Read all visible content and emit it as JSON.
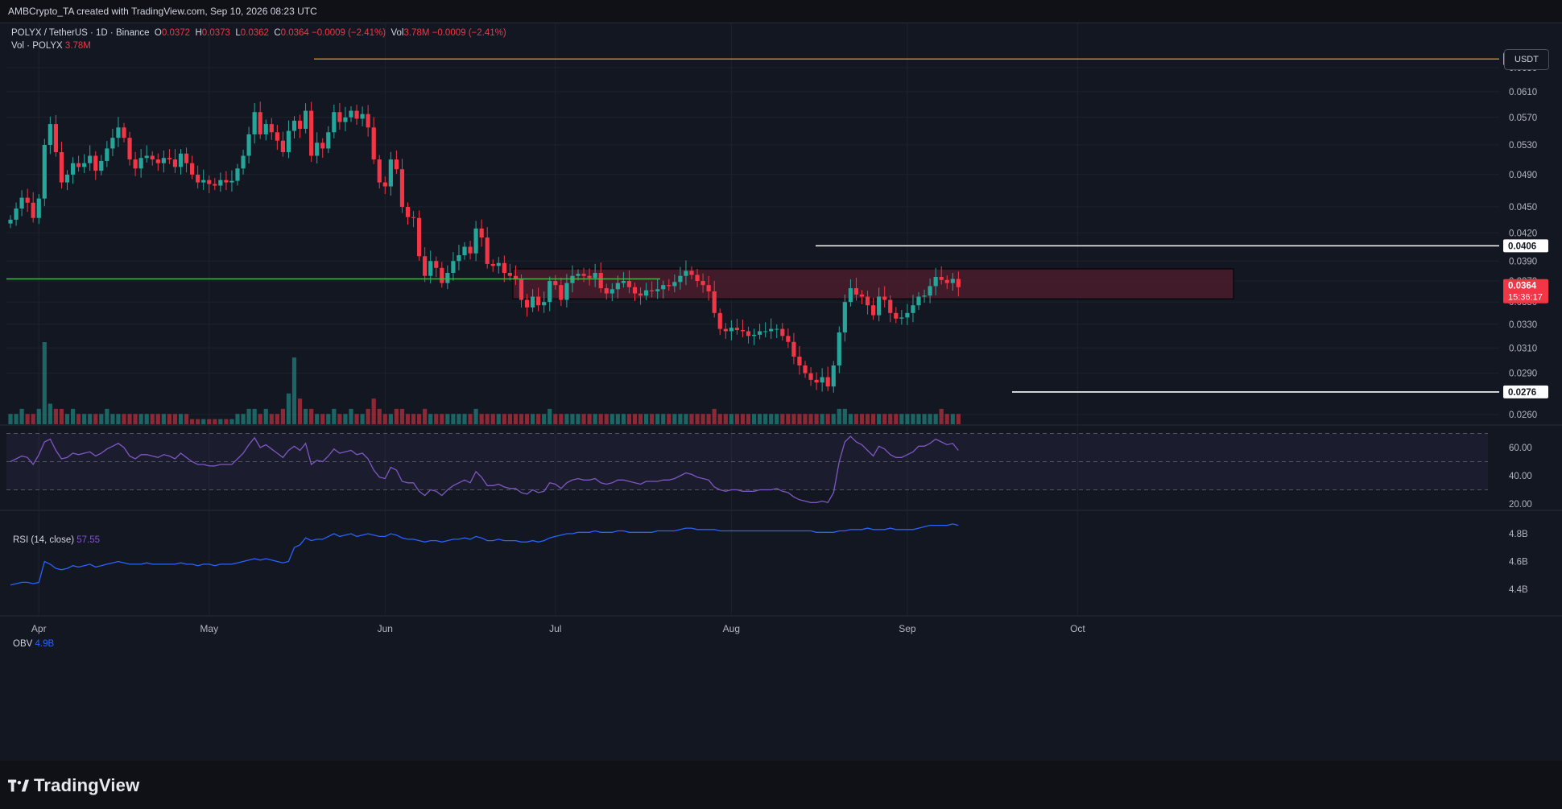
{
  "header": {
    "attribution": "AMBCrypto_TA created with TradingView.com, Sep 10, 2026 08:23 UTC"
  },
  "legend": {
    "symbol": "POLYX / TetherUS · 1D · Binance",
    "open_label": "O",
    "open": "0.0372",
    "high_label": "H",
    "high": "0.0373",
    "low_label": "L",
    "low": "0.0362",
    "close_label": "C",
    "close": "0.0364 −0.0009 (−2.41%)",
    "vol_label": "Vol",
    "vol": "3.78M −0.0009 (−2.41%)",
    "vol_line_label": "Vol · POLYX",
    "vol_line_value": "3.78M"
  },
  "currency_button": "USDT",
  "rsi_legend": {
    "label": "RSI (14, close)",
    "value": "57.55"
  },
  "obv_legend": {
    "label": "OBV",
    "value": "4.9B"
  },
  "footer": {
    "brand": "TradingView"
  },
  "colors": {
    "up": "#26a69a",
    "down": "#f23645",
    "rsi": "#7e57c2",
    "obv": "#2962ff",
    "zone": "#4a1c2a",
    "green_line": "#4caf50",
    "orange_line": "#ff9800"
  },
  "chart_data": {
    "type": "candlestick",
    "price_axis": {
      "ticks": [
        "0.0650",
        "0.0610",
        "0.0570",
        "0.0530",
        "0.0490",
        "0.0450",
        "0.0420",
        "0.0390",
        "0.0370",
        "0.0350",
        "0.0330",
        "0.0310",
        "0.0290",
        "0.0260"
      ],
      "scale": "log"
    },
    "x_axis": {
      "ticks": [
        "Apr",
        "May",
        "Jun",
        "Jul",
        "Aug",
        "Sep",
        "Oct"
      ]
    },
    "price_labels": [
      {
        "value": "0.0665",
        "kind": "orange"
      },
      {
        "value": "0.0406",
        "kind": "white"
      },
      {
        "value": "0.0364",
        "kind": "current",
        "countdown": "15:36:17"
      },
      {
        "value": "0.0276",
        "kind": "white"
      }
    ],
    "levels": {
      "resistance_high": 0.0665,
      "recent_high": 0.0406,
      "support_low": 0.0276,
      "green_line": 0.0372
    },
    "zone": {
      "top": 0.0382,
      "bottom": 0.0353,
      "from": "Jun 9",
      "to": "Sep 14"
    },
    "rsi_axis": {
      "ticks": [
        "60.00",
        "40.00",
        "20.00"
      ],
      "upper": 70,
      "middle": 50,
      "lower": 30
    },
    "obv_axis": {
      "ticks": [
        "4.8B",
        "4.6B",
        "4.4B"
      ]
    },
    "start_date": "Mar 27",
    "closes": [
      0.0435,
      0.0448,
      0.0461,
      0.0455,
      0.0437,
      0.046,
      0.053,
      0.056,
      0.052,
      0.048,
      0.049,
      0.0505,
      0.05,
      0.0505,
      0.0515,
      0.0495,
      0.0508,
      0.0525,
      0.054,
      0.0555,
      0.054,
      0.051,
      0.0498,
      0.0512,
      0.0515,
      0.051,
      0.0505,
      0.0512,
      0.051,
      0.05,
      0.0518,
      0.0505,
      0.049,
      0.048,
      0.0483,
      0.0478,
      0.0476,
      0.0483,
      0.048,
      0.0482,
      0.0498,
      0.0515,
      0.0545,
      0.0578,
      0.0545,
      0.056,
      0.0548,
      0.0536,
      0.052,
      0.055,
      0.0565,
      0.0553,
      0.058,
      0.0515,
      0.0533,
      0.0525,
      0.0548,
      0.0578,
      0.0563,
      0.057,
      0.058,
      0.0568,
      0.0575,
      0.0555,
      0.051,
      0.048,
      0.0475,
      0.051,
      0.0497,
      0.045,
      0.0438,
      0.0437,
      0.0395,
      0.0375,
      0.039,
      0.0383,
      0.0368,
      0.0378,
      0.039,
      0.0396,
      0.0405,
      0.0398,
      0.0425,
      0.0415,
      0.0387,
      0.0385,
      0.0388,
      0.0378,
      0.0375,
      0.0372,
      0.0352,
      0.0345,
      0.0355,
      0.0347,
      0.035,
      0.037,
      0.0366,
      0.0352,
      0.0368,
      0.0375,
      0.0377,
      0.0375,
      0.0373,
      0.0378,
      0.0363,
      0.0358,
      0.0362,
      0.0368,
      0.037,
      0.0364,
      0.0358,
      0.0356,
      0.0361,
      0.036,
      0.0362,
      0.0366,
      0.0365,
      0.0369,
      0.0375,
      0.038,
      0.0376,
      0.037,
      0.0366,
      0.036,
      0.034,
      0.0326,
      0.0324,
      0.0327,
      0.0325,
      0.0324,
      0.032,
      0.0321,
      0.0324,
      0.0324,
      0.0326,
      0.0326,
      0.032,
      0.0315,
      0.0303,
      0.0296,
      0.029,
      0.0285,
      0.0283,
      0.0287,
      0.028,
      0.0296,
      0.0323,
      0.035,
      0.0363,
      0.0357,
      0.0355,
      0.0347,
      0.0338,
      0.0355,
      0.0352,
      0.034,
      0.0335,
      0.0336,
      0.034,
      0.0347,
      0.0355,
      0.0356,
      0.0365,
      0.0374,
      0.0371,
      0.0368,
      0.0372,
      0.0364
    ],
    "rsi": [
      50,
      52,
      54,
      53,
      48,
      55,
      64,
      66,
      58,
      52,
      53,
      56,
      55,
      56,
      57,
      54,
      56,
      59,
      61,
      63,
      60,
      54,
      52,
      55,
      55,
      54,
      53,
      55,
      54,
      52,
      56,
      53,
      50,
      48,
      48,
      47,
      47,
      48,
      48,
      48,
      52,
      56,
      62,
      67,
      60,
      62,
      59,
      56,
      53,
      58,
      61,
      58,
      63,
      48,
      51,
      50,
      54,
      59,
      56,
      57,
      58,
      55,
      56,
      52,
      44,
      39,
      38,
      46,
      44,
      36,
      35,
      35,
      29,
      26,
      30,
      29,
      26,
      30,
      33,
      35,
      37,
      35,
      43,
      39,
      33,
      33,
      34,
      32,
      31,
      31,
      28,
      27,
      30,
      28,
      29,
      35,
      34,
      31,
      35,
      37,
      38,
      37,
      37,
      38,
      35,
      34,
      35,
      37,
      37,
      36,
      35,
      34,
      36,
      36,
      36,
      37,
      37,
      38,
      40,
      42,
      41,
      39,
      38,
      37,
      32,
      30,
      29,
      30,
      30,
      29,
      29,
      29,
      30,
      30,
      30,
      31,
      29,
      28,
      25,
      23,
      22,
      21,
      21,
      22,
      21,
      28,
      50,
      64,
      68,
      64,
      62,
      58,
      54,
      61,
      59,
      55,
      53,
      53,
      55,
      57,
      61,
      61,
      63,
      66,
      64,
      62,
      63,
      58
    ],
    "obv": [
      4.43,
      4.44,
      4.45,
      4.45,
      4.44,
      4.45,
      4.6,
      4.58,
      4.55,
      4.54,
      4.55,
      4.57,
      4.56,
      4.57,
      4.58,
      4.56,
      4.57,
      4.58,
      4.59,
      4.6,
      4.59,
      4.58,
      4.58,
      4.58,
      4.59,
      4.58,
      4.58,
      4.58,
      4.58,
      4.58,
      4.59,
      4.58,
      4.58,
      4.57,
      4.58,
      4.58,
      4.57,
      4.58,
      4.58,
      4.58,
      4.59,
      4.6,
      4.61,
      4.62,
      4.61,
      4.62,
      4.61,
      4.6,
      4.59,
      4.6,
      4.7,
      4.72,
      4.77,
      4.75,
      4.76,
      4.76,
      4.78,
      4.8,
      4.78,
      4.79,
      4.8,
      4.78,
      4.79,
      4.8,
      4.79,
      4.78,
      4.78,
      4.8,
      4.79,
      4.77,
      4.76,
      4.76,
      4.75,
      4.74,
      4.75,
      4.75,
      4.74,
      4.75,
      4.76,
      4.76,
      4.77,
      4.76,
      4.78,
      4.77,
      4.75,
      4.75,
      4.76,
      4.75,
      4.75,
      4.75,
      4.74,
      4.74,
      4.75,
      4.74,
      4.75,
      4.77,
      4.78,
      4.79,
      4.8,
      4.8,
      4.81,
      4.81,
      4.81,
      4.82,
      4.81,
      4.81,
      4.81,
      4.82,
      4.82,
      4.81,
      4.81,
      4.81,
      4.81,
      4.81,
      4.82,
      4.82,
      4.82,
      4.82,
      4.83,
      4.84,
      4.84,
      4.83,
      4.83,
      4.83,
      4.83,
      4.82,
      4.82,
      4.82,
      4.82,
      4.82,
      4.82,
      4.82,
      4.82,
      4.82,
      4.82,
      4.82,
      4.82,
      4.82,
      4.82,
      4.82,
      4.82,
      4.82,
      4.81,
      4.81,
      4.81,
      4.81,
      4.82,
      4.82,
      4.83,
      4.83,
      4.83,
      4.84,
      4.83,
      4.83,
      4.83,
      4.84,
      4.83,
      4.83,
      4.83,
      4.83,
      4.84,
      4.85,
      4.86,
      4.86,
      4.86,
      4.86,
      4.87,
      4.86
    ],
    "volume": [
      2,
      2,
      3,
      2,
      2,
      3,
      16,
      4,
      3,
      3,
      2,
      3,
      2,
      2,
      2,
      2,
      2,
      3,
      2,
      2,
      2,
      2,
      2,
      2,
      2,
      2,
      2,
      2,
      2,
      2,
      2,
      2,
      1,
      1,
      1,
      1,
      1,
      1,
      1,
      1,
      2,
      2,
      3,
      3,
      2,
      3,
      2,
      2,
      3,
      6,
      13,
      5,
      3,
      3,
      2,
      2,
      2,
      3,
      2,
      2,
      3,
      2,
      2,
      3,
      5,
      3,
      2,
      2,
      3,
      3,
      2,
      2,
      2,
      3,
      2,
      2,
      2,
      2,
      2,
      2,
      2,
      2,
      3,
      2,
      2,
      2,
      2,
      2,
      2,
      2,
      2,
      2,
      2,
      2,
      2,
      3,
      2,
      2,
      2,
      2,
      2,
      2,
      2,
      2,
      2,
      2,
      2,
      2,
      2,
      2,
      2,
      2,
      2,
      2,
      2,
      2,
      2,
      2,
      2,
      2,
      2,
      2,
      2,
      2,
      3,
      2,
      2,
      2,
      2,
      2,
      2,
      2,
      2,
      2,
      2,
      2,
      2,
      2,
      2,
      2,
      2,
      2,
      2,
      2,
      2,
      2,
      3,
      3,
      2,
      2,
      2,
      2,
      2,
      2,
      2,
      2,
      2,
      2,
      2,
      2,
      2,
      2,
      2,
      2,
      3,
      2,
      2,
      2
    ]
  }
}
